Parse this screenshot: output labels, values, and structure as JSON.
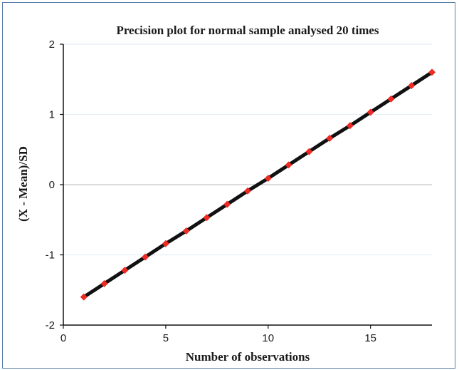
{
  "chart_data": {
    "type": "line",
    "title": "Precision plot for normal sample analysed 20 times",
    "xlabel": "Number of observations",
    "ylabel": "(X - Mean)/SD",
    "xlim": [
      0,
      18
    ],
    "ylim": [
      -2,
      2
    ],
    "xticks": [
      0,
      5,
      10,
      15
    ],
    "yticks": [
      2,
      1,
      0,
      -1,
      -2
    ],
    "grid": true,
    "colors": {
      "line": "#111111",
      "marker": "#ee2a24",
      "gridline": "#e6eef5",
      "zeroline": "#cfcfcf"
    },
    "series": [
      {
        "x": [
          1,
          2,
          3,
          4,
          5,
          6,
          7,
          8,
          9,
          10,
          11,
          12,
          13,
          14,
          15,
          16,
          17,
          18
        ],
        "y": [
          -1.6,
          -1.41,
          -1.22,
          -1.03,
          -0.84,
          -0.66,
          -0.47,
          -0.28,
          -0.09,
          0.09,
          0.28,
          0.47,
          0.66,
          0.84,
          1.03,
          1.22,
          1.41,
          1.6
        ]
      }
    ]
  }
}
